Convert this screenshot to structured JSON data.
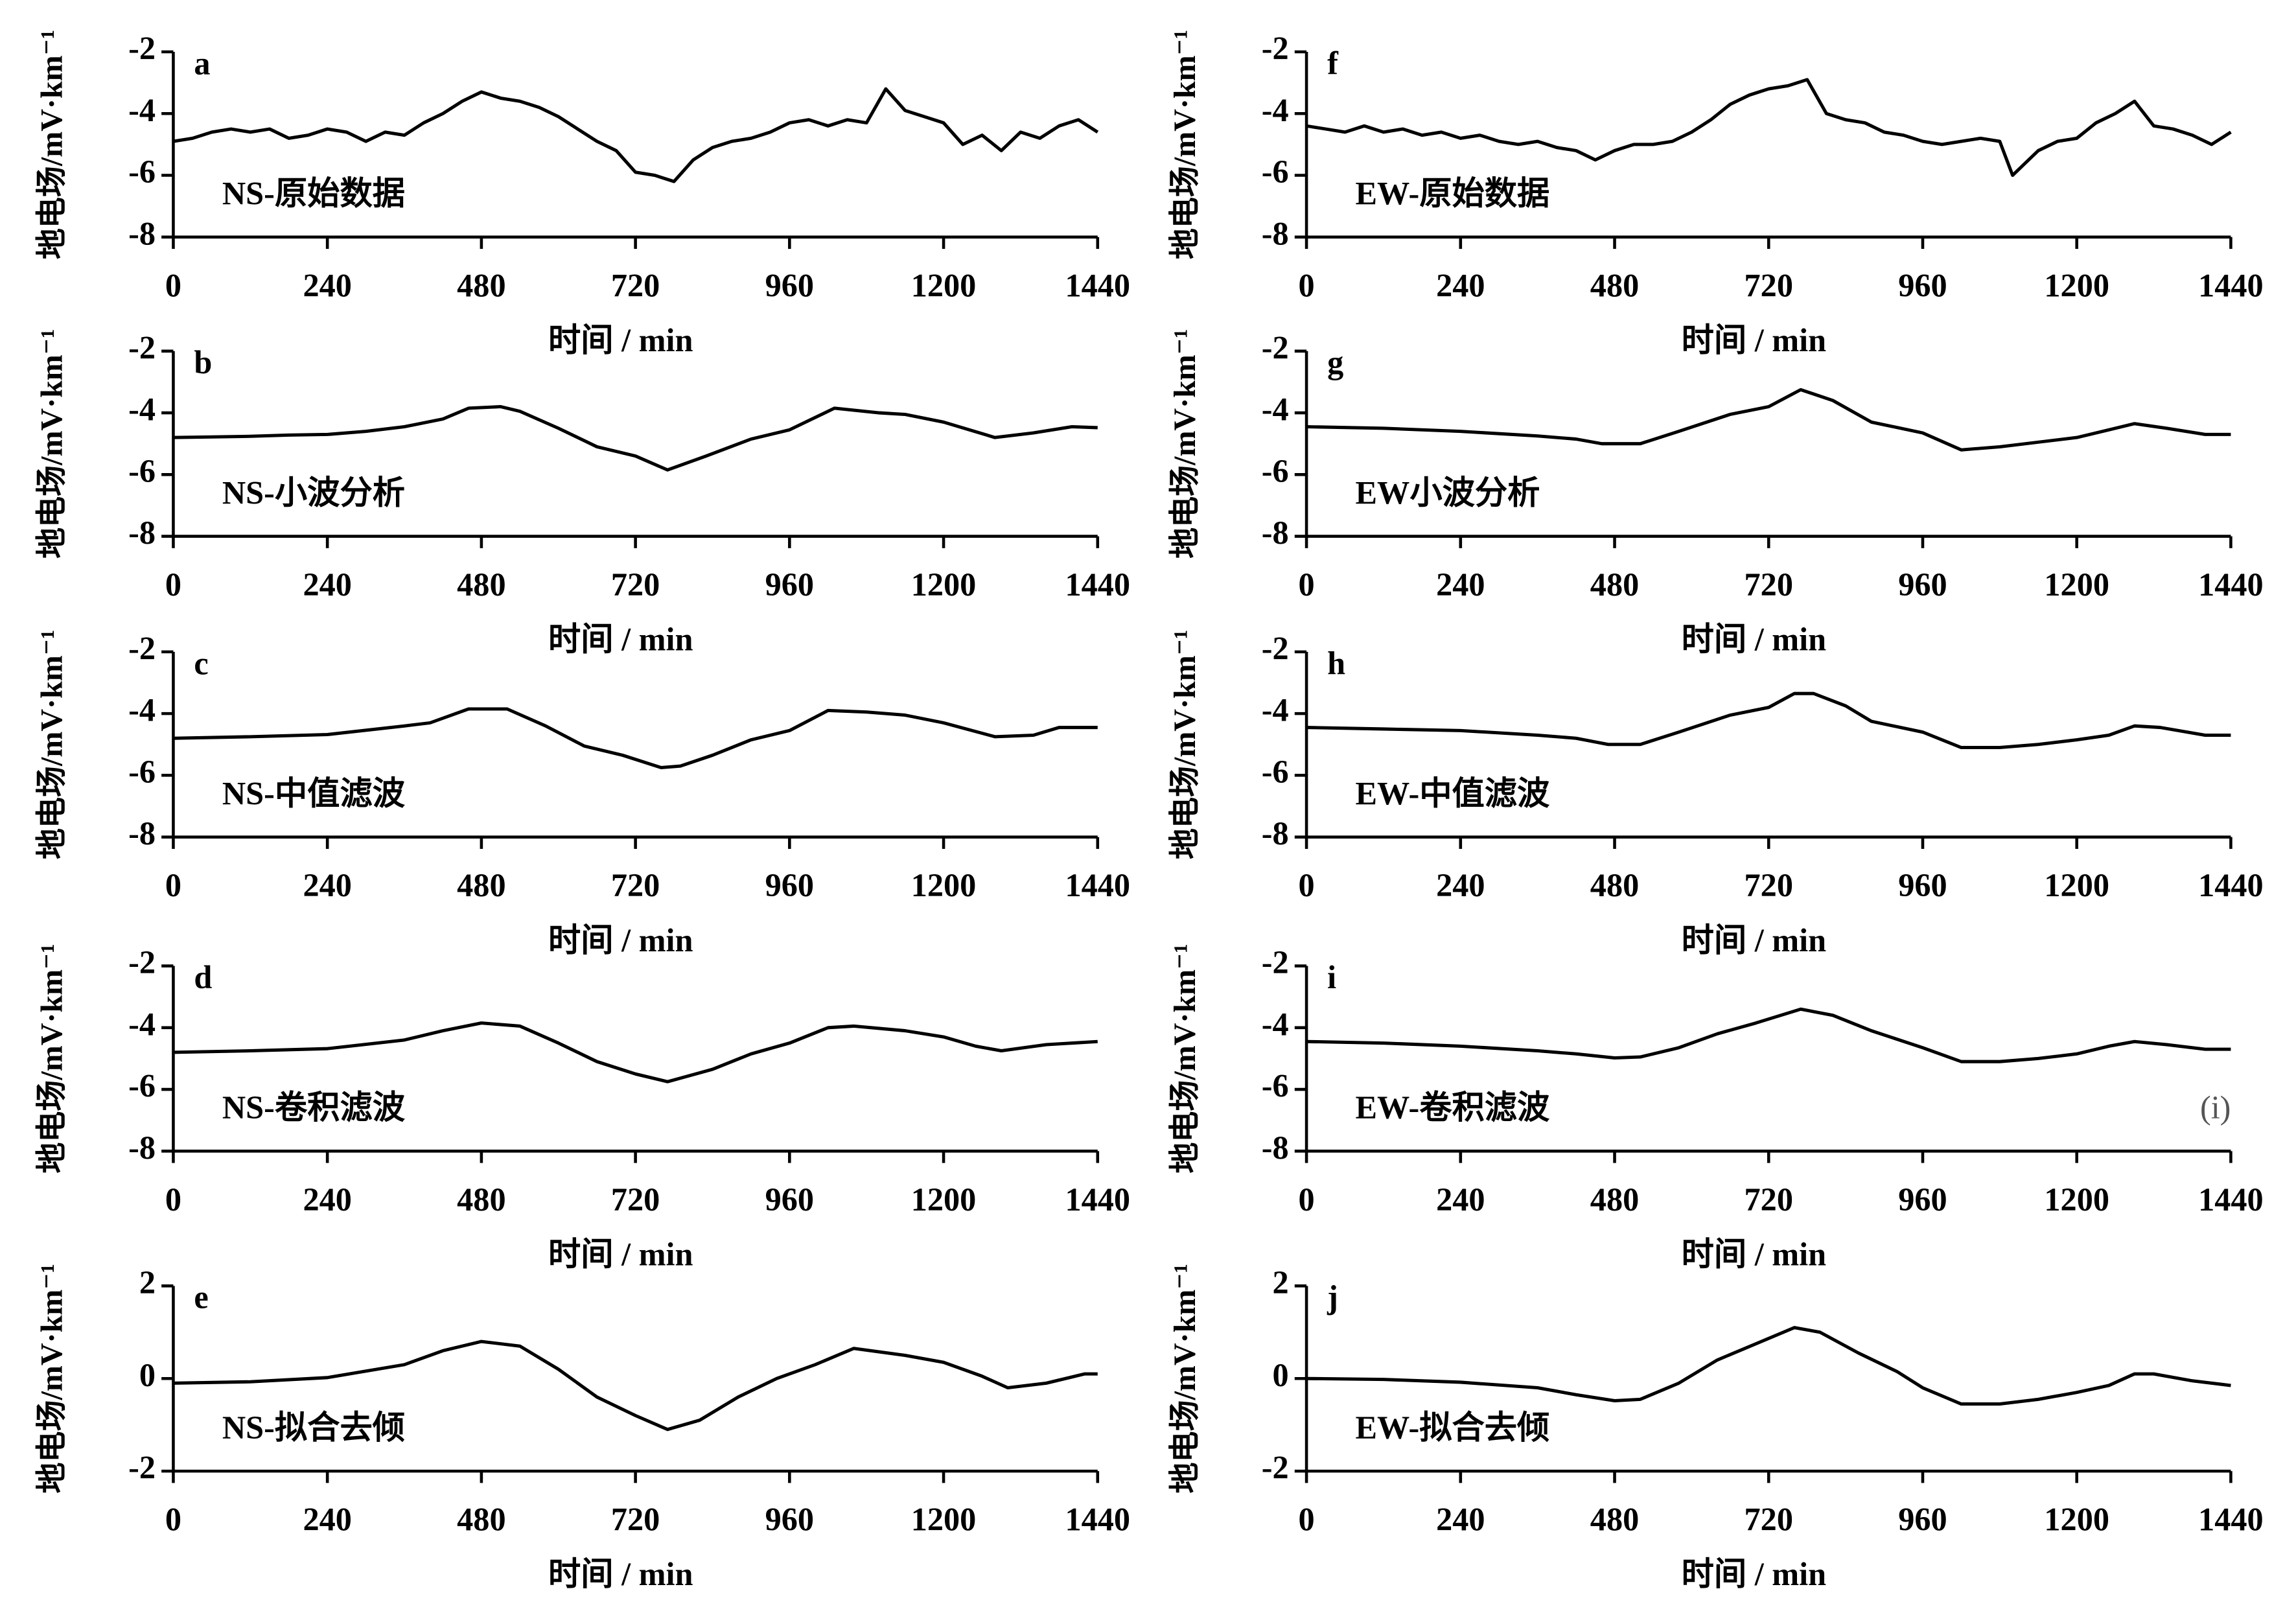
{
  "chart_data": [
    {
      "type": "line",
      "panel": "a",
      "annotation": "NS-原始数据",
      "ylabel": "地电场/mV·km⁻¹",
      "xlabel": "时间 / min",
      "xlim": [
        0,
        1440
      ],
      "xticks": [
        0,
        240,
        480,
        720,
        960,
        1200,
        1440
      ],
      "ylim": [
        -8,
        -2
      ],
      "yticks": [
        -8,
        -6,
        -4,
        -2
      ],
      "x": [
        0,
        30,
        60,
        90,
        120,
        150,
        180,
        210,
        240,
        270,
        300,
        330,
        360,
        390,
        420,
        450,
        480,
        510,
        540,
        570,
        600,
        630,
        660,
        690,
        720,
        750,
        780,
        810,
        840,
        870,
        900,
        930,
        960,
        990,
        1020,
        1050,
        1080,
        1110,
        1140,
        1170,
        1200,
        1230,
        1260,
        1290,
        1320,
        1350,
        1380,
        1410,
        1440
      ],
      "series": [
        {
          "color": "#000000",
          "values": [
            -4.9,
            -4.8,
            -4.6,
            -4.5,
            -4.6,
            -4.5,
            -4.8,
            -4.7,
            -4.5,
            -4.6,
            -4.9,
            -4.6,
            -4.7,
            -4.3,
            -4.0,
            -3.6,
            -3.3,
            -3.5,
            -3.6,
            -3.8,
            -4.1,
            -4.5,
            -4.9,
            -5.2,
            -5.9,
            -6.0,
            -6.2,
            -5.5,
            -5.1,
            -4.9,
            -4.8,
            -4.6,
            -4.3,
            -4.2,
            -4.4,
            -4.2,
            -4.3,
            -3.2,
            -3.9,
            -4.1,
            -4.3,
            -5.0,
            -4.7,
            -5.2,
            -4.6,
            -4.8,
            -4.4,
            -4.2,
            -4.6
          ]
        }
      ]
    },
    {
      "type": "line",
      "panel": "b",
      "annotation": "NS-小波分析",
      "ylabel": "地电场/mV·km⁻¹",
      "xlabel": "时间 / min",
      "xlim": [
        0,
        1440
      ],
      "xticks": [
        0,
        240,
        480,
        720,
        960,
        1200,
        1440
      ],
      "ylim": [
        -8,
        -2
      ],
      "yticks": [
        -8,
        -6,
        -4,
        -2
      ],
      "x": [
        0,
        60,
        120,
        180,
        240,
        300,
        360,
        420,
        460,
        510,
        540,
        600,
        660,
        720,
        770,
        830,
        900,
        960,
        1030,
        1100,
        1140,
        1200,
        1280,
        1340,
        1400,
        1440
      ],
      "series": [
        {
          "color": "#000000",
          "values": [
            -4.8,
            -4.78,
            -4.76,
            -4.72,
            -4.7,
            -4.6,
            -4.45,
            -4.2,
            -3.85,
            -3.8,
            -3.95,
            -4.5,
            -5.1,
            -5.4,
            -5.85,
            -5.4,
            -4.85,
            -4.55,
            -3.85,
            -4.0,
            -4.05,
            -4.3,
            -4.8,
            -4.65,
            -4.45,
            -4.48
          ]
        }
      ]
    },
    {
      "type": "line",
      "panel": "c",
      "annotation": "NS-中值滤波",
      "ylabel": "地电场/mV·km⁻¹",
      "xlabel": "时间 / min",
      "xlim": [
        0,
        1440
      ],
      "xticks": [
        0,
        240,
        480,
        720,
        960,
        1200,
        1440
      ],
      "ylim": [
        -8,
        -2
      ],
      "yticks": [
        -8,
        -6,
        -4,
        -2
      ],
      "x": [
        0,
        120,
        240,
        360,
        400,
        460,
        520,
        580,
        640,
        700,
        760,
        790,
        840,
        900,
        960,
        1020,
        1080,
        1140,
        1200,
        1280,
        1340,
        1380,
        1440
      ],
      "series": [
        {
          "color": "#000000",
          "values": [
            -4.8,
            -4.75,
            -4.68,
            -4.4,
            -4.3,
            -3.85,
            -3.85,
            -4.4,
            -5.05,
            -5.35,
            -5.75,
            -5.7,
            -5.35,
            -4.85,
            -4.55,
            -3.9,
            -3.95,
            -4.05,
            -4.3,
            -4.75,
            -4.7,
            -4.45,
            -4.45
          ]
        }
      ]
    },
    {
      "type": "line",
      "panel": "d",
      "annotation": "NS-卷积滤波",
      "ylabel": "地电场/mV·km⁻¹",
      "xlabel": "时间 / min",
      "xlim": [
        0,
        1440
      ],
      "xticks": [
        0,
        240,
        480,
        720,
        960,
        1200,
        1440
      ],
      "ylim": [
        -8,
        -2
      ],
      "yticks": [
        -8,
        -6,
        -4,
        -2
      ],
      "x": [
        0,
        120,
        240,
        360,
        420,
        480,
        540,
        600,
        660,
        720,
        770,
        840,
        900,
        960,
        1020,
        1060,
        1140,
        1200,
        1250,
        1290,
        1360,
        1440
      ],
      "series": [
        {
          "color": "#000000",
          "values": [
            -4.8,
            -4.75,
            -4.68,
            -4.4,
            -4.1,
            -3.85,
            -3.95,
            -4.5,
            -5.1,
            -5.5,
            -5.75,
            -5.35,
            -4.85,
            -4.5,
            -4.0,
            -3.95,
            -4.1,
            -4.3,
            -4.6,
            -4.75,
            -4.55,
            -4.45
          ]
        }
      ]
    },
    {
      "type": "line",
      "panel": "e",
      "annotation": "NS-拟合去倾",
      "ylabel": "地电场/mV·km⁻¹",
      "xlabel": "时间 / min",
      "xlim": [
        0,
        1440
      ],
      "xticks": [
        0,
        240,
        480,
        720,
        960,
        1200,
        1440
      ],
      "ylim": [
        -2,
        2
      ],
      "yticks": [
        -2,
        0,
        2
      ],
      "x": [
        0,
        120,
        240,
        360,
        420,
        480,
        540,
        600,
        660,
        720,
        770,
        820,
        880,
        940,
        1000,
        1060,
        1140,
        1200,
        1260,
        1300,
        1360,
        1420,
        1440
      ],
      "series": [
        {
          "color": "#000000",
          "values": [
            -0.1,
            -0.07,
            0.02,
            0.3,
            0.6,
            0.8,
            0.7,
            0.2,
            -0.4,
            -0.8,
            -1.1,
            -0.9,
            -0.4,
            0.0,
            0.3,
            0.65,
            0.5,
            0.35,
            0.05,
            -0.2,
            -0.1,
            0.1,
            0.1
          ]
        }
      ]
    },
    {
      "type": "line",
      "panel": "f",
      "annotation": "EW-原始数据",
      "ylabel": "地电场/mV·km⁻¹",
      "xlabel": "时间 / min",
      "xlim": [
        0,
        1440
      ],
      "xticks": [
        0,
        240,
        480,
        720,
        960,
        1200,
        1440
      ],
      "ylim": [
        -8,
        -2
      ],
      "yticks": [
        -8,
        -6,
        -4,
        -2
      ],
      "x": [
        0,
        30,
        60,
        90,
        120,
        150,
        180,
        210,
        240,
        270,
        300,
        330,
        360,
        390,
        420,
        450,
        480,
        510,
        540,
        570,
        600,
        630,
        660,
        690,
        720,
        750,
        780,
        810,
        840,
        870,
        900,
        930,
        960,
        990,
        1020,
        1050,
        1080,
        1100,
        1140,
        1170,
        1200,
        1230,
        1260,
        1290,
        1320,
        1350,
        1380,
        1410,
        1440
      ],
      "series": [
        {
          "color": "#000000",
          "values": [
            -4.4,
            -4.5,
            -4.6,
            -4.4,
            -4.6,
            -4.5,
            -4.7,
            -4.6,
            -4.8,
            -4.7,
            -4.9,
            -5.0,
            -4.9,
            -5.1,
            -5.2,
            -5.5,
            -5.2,
            -5.0,
            -5.0,
            -4.9,
            -4.6,
            -4.2,
            -3.7,
            -3.4,
            -3.2,
            -3.1,
            -2.9,
            -4.0,
            -4.2,
            -4.3,
            -4.6,
            -4.7,
            -4.9,
            -5.0,
            -4.9,
            -4.8,
            -4.9,
            -6.0,
            -5.2,
            -4.9,
            -4.8,
            -4.3,
            -4.0,
            -3.6,
            -4.4,
            -4.5,
            -4.7,
            -5.0,
            -4.6
          ]
        }
      ]
    },
    {
      "type": "line",
      "panel": "g",
      "annotation": "EW小波分析",
      "ylabel": "地电场/mV·km⁻¹",
      "xlabel": "时间 / min",
      "xlim": [
        0,
        1440
      ],
      "xticks": [
        0,
        240,
        480,
        720,
        960,
        1200,
        1440
      ],
      "ylim": [
        -8,
        -2
      ],
      "yticks": [
        -8,
        -6,
        -4,
        -2
      ],
      "x": [
        0,
        120,
        240,
        360,
        420,
        460,
        520,
        580,
        660,
        720,
        770,
        820,
        880,
        960,
        1020,
        1080,
        1140,
        1200,
        1250,
        1290,
        1340,
        1400,
        1440
      ],
      "series": [
        {
          "color": "#000000",
          "values": [
            -4.45,
            -4.5,
            -4.6,
            -4.75,
            -4.85,
            -5.0,
            -5.0,
            -4.6,
            -4.05,
            -3.8,
            -3.25,
            -3.6,
            -4.3,
            -4.65,
            -5.2,
            -5.1,
            -4.95,
            -4.8,
            -4.55,
            -4.35,
            -4.5,
            -4.7,
            -4.7
          ]
        }
      ]
    },
    {
      "type": "line",
      "panel": "h",
      "annotation": "EW-中值滤波",
      "ylabel": "地电场/mV·km⁻¹",
      "xlabel": "时间 / min",
      "xlim": [
        0,
        1440
      ],
      "xticks": [
        0,
        240,
        480,
        720,
        960,
        1200,
        1440
      ],
      "ylim": [
        -8,
        -2
      ],
      "yticks": [
        -8,
        -6,
        -4,
        -2
      ],
      "x": [
        0,
        120,
        240,
        360,
        420,
        470,
        520,
        580,
        660,
        720,
        760,
        790,
        840,
        880,
        960,
        1020,
        1080,
        1140,
        1200,
        1250,
        1290,
        1330,
        1400,
        1440
      ],
      "series": [
        {
          "color": "#000000",
          "values": [
            -4.45,
            -4.5,
            -4.55,
            -4.7,
            -4.8,
            -5.0,
            -5.0,
            -4.6,
            -4.05,
            -3.8,
            -3.35,
            -3.35,
            -3.75,
            -4.25,
            -4.6,
            -5.1,
            -5.1,
            -5.0,
            -4.85,
            -4.7,
            -4.4,
            -4.45,
            -4.7,
            -4.7
          ]
        }
      ]
    },
    {
      "type": "line",
      "panel": "i",
      "annotation": "EW-卷积滤波",
      "corner_note": "(i)",
      "ylabel": "地电场/mV·km⁻¹",
      "xlabel": "时间 / min",
      "xlim": [
        0,
        1440
      ],
      "xticks": [
        0,
        240,
        480,
        720,
        960,
        1200,
        1440
      ],
      "ylim": [
        -8,
        -2
      ],
      "yticks": [
        -8,
        -6,
        -4,
        -2
      ],
      "x": [
        0,
        120,
        240,
        360,
        420,
        480,
        520,
        580,
        640,
        700,
        770,
        820,
        880,
        960,
        1020,
        1080,
        1140,
        1200,
        1250,
        1290,
        1340,
        1400,
        1440
      ],
      "series": [
        {
          "color": "#000000",
          "values": [
            -4.45,
            -4.5,
            -4.6,
            -4.75,
            -4.85,
            -4.98,
            -4.95,
            -4.65,
            -4.2,
            -3.85,
            -3.4,
            -3.6,
            -4.1,
            -4.65,
            -5.1,
            -5.1,
            -5.0,
            -4.85,
            -4.6,
            -4.45,
            -4.55,
            -4.7,
            -4.7
          ]
        }
      ]
    },
    {
      "type": "line",
      "panel": "j",
      "annotation": "EW-拟合去倾",
      "ylabel": "地电场/mV·km⁻¹",
      "xlabel": "时间 / min",
      "xlim": [
        0,
        1440
      ],
      "xticks": [
        0,
        240,
        480,
        720,
        960,
        1200,
        1440
      ],
      "ylim": [
        -2,
        2
      ],
      "yticks": [
        -2,
        0,
        2
      ],
      "x": [
        0,
        120,
        240,
        360,
        420,
        480,
        520,
        580,
        640,
        700,
        760,
        800,
        860,
        920,
        960,
        1020,
        1080,
        1140,
        1200,
        1250,
        1290,
        1320,
        1380,
        1440
      ],
      "series": [
        {
          "color": "#000000",
          "values": [
            0.0,
            -0.02,
            -0.08,
            -0.2,
            -0.35,
            -0.48,
            -0.45,
            -0.1,
            0.4,
            0.75,
            1.1,
            1.0,
            0.55,
            0.15,
            -0.2,
            -0.55,
            -0.55,
            -0.45,
            -0.3,
            -0.15,
            0.1,
            0.1,
            -0.05,
            -0.15
          ]
        }
      ]
    }
  ]
}
